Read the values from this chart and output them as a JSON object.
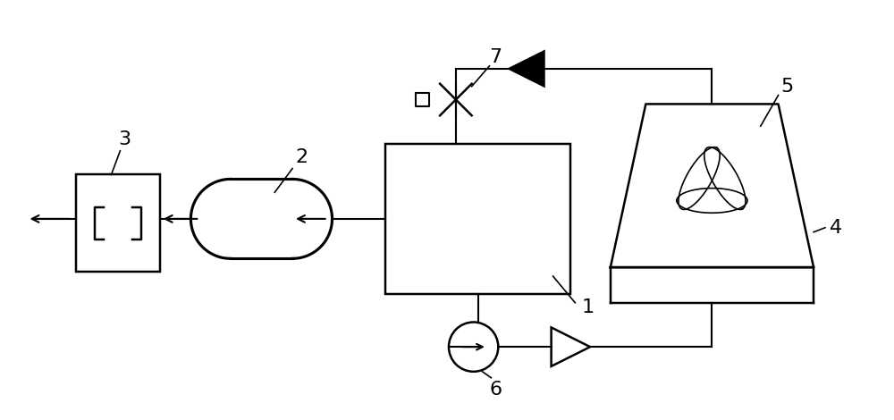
{
  "bg_color": "#ffffff",
  "line_color": "#000000",
  "lw": 1.5,
  "fig_width": 10.0,
  "fig_height": 4.7,
  "label_fontsize": 16
}
